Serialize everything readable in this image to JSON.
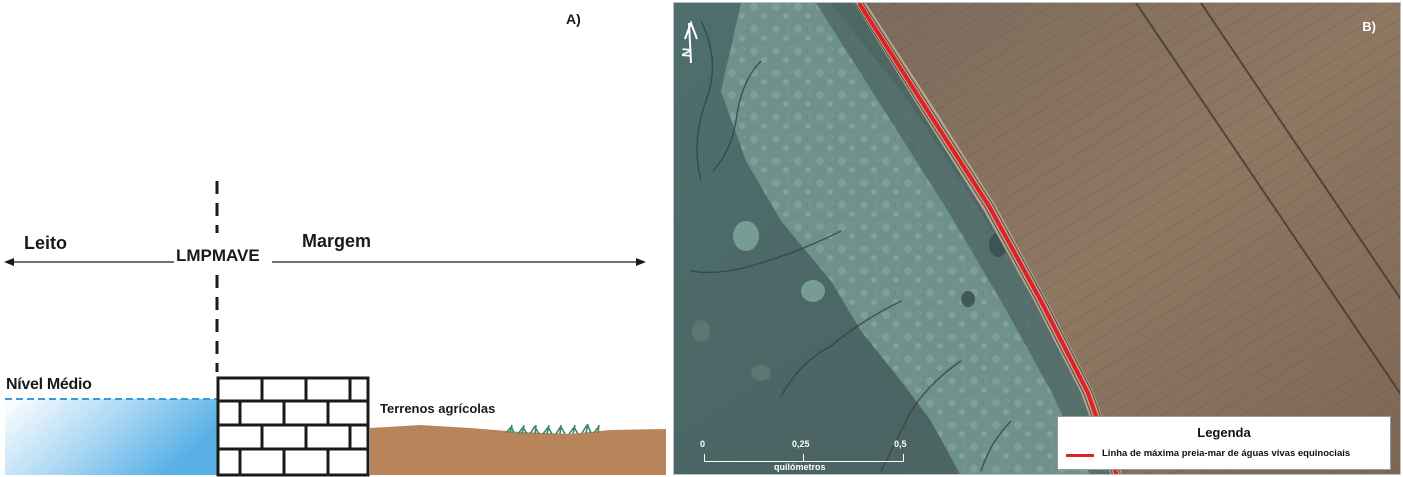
{
  "panel_a": {
    "panel_label": "A)",
    "left_label": "Leito",
    "right_label": "Margem",
    "line_label": "LMPMAVE",
    "water_label": "Nível Médio",
    "land_label": "Terrenos agrícolas",
    "colors": {
      "water_top": "#5ab4e8",
      "water_light": "#ffffff",
      "soil": "#b8845a",
      "grass": "#3c8a62",
      "brick_line": "#1a1a1a"
    }
  },
  "panel_b": {
    "panel_label": "B)",
    "north_symbol": "N",
    "legend": {
      "title": "Legenda",
      "item": "Linha de máxima preia-mar de águas vivas equinociais",
      "line_color": "#e31e24"
    },
    "scale": {
      "ticks": [
        "0",
        "0,25",
        "0,5"
      ],
      "unit": "quilómetros"
    },
    "colors": {
      "water": "#3f5a5b",
      "marsh": "#6d8e8a",
      "fields": "#8a7460",
      "road": "#bba58e",
      "boundary": "#e31e24"
    }
  }
}
